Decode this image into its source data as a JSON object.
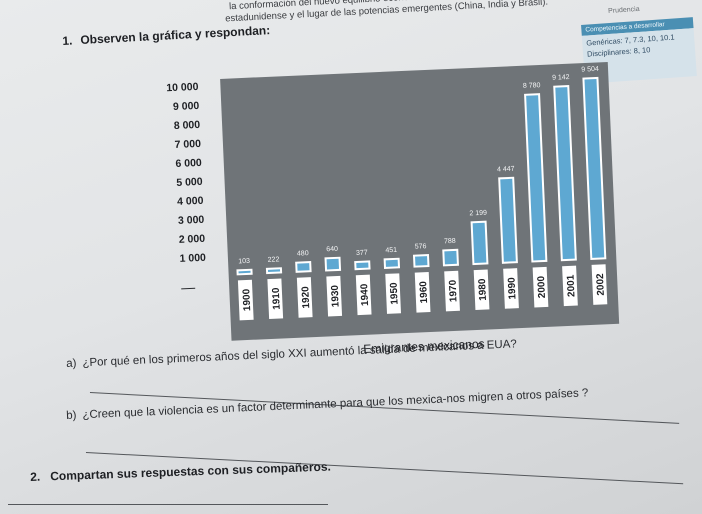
{
  "header": {
    "line1": "la conformación del nuevo equilibrio económico mundial con la hegemonía",
    "line2": "estadunidense y el lugar de las potencias emergentes (China, India y Brasil)."
  },
  "competencias": {
    "tag": "Prudencia",
    "title": "Competencias a desarrollar",
    "genericas": "Genéricas: 7, 7.3, 10, 10.1",
    "disciplinares": "Disciplinares: 8, 10"
  },
  "question1": {
    "number": "1.",
    "text": "Observen la gráfica y respondan:"
  },
  "chart_data": {
    "type": "bar",
    "xlabel": "Emigrantes mexicanos",
    "ylim": [
      0,
      10000
    ],
    "y_ticks": [
      "1 000",
      "2 000",
      "3 000",
      "4 000",
      "5 000",
      "6 000",
      "7 000",
      "8 000",
      "9 000",
      "10 000"
    ],
    "y_tick_values": [
      1000,
      2000,
      3000,
      4000,
      5000,
      6000,
      7000,
      8000,
      9000,
      10000
    ],
    "categories": [
      "1900",
      "1910",
      "1920",
      "1930",
      "1940",
      "1950",
      "1960",
      "1970",
      "1980",
      "1990",
      "2000",
      "2001",
      "2002"
    ],
    "values": [
      103,
      222,
      480,
      640,
      377,
      451,
      576,
      788,
      2199,
      4447,
      8780,
      9142,
      9504
    ],
    "value_labels": [
      "103",
      "222",
      "480",
      "640",
      "377",
      "451",
      "576",
      "788",
      "2 199",
      "4 447",
      "8 780",
      "9 142",
      "9 504"
    ],
    "bar_color": "#5ea8d2",
    "bar_edge_color": "#ffffff",
    "background_color": "#6f7478",
    "grid": false
  },
  "question_a": {
    "label": "a)",
    "text": "¿Por qué en los primeros años del siglo XXI aumentó la salida de mexicanos a EUA?"
  },
  "question_b": {
    "label": "b)",
    "text": "¿Creen que la violencia es un factor determinante para que los mexica-nos migren a otros países ?"
  },
  "question2": {
    "number": "2.",
    "text": "Compartan sus respuestas con sus compañeros."
  }
}
